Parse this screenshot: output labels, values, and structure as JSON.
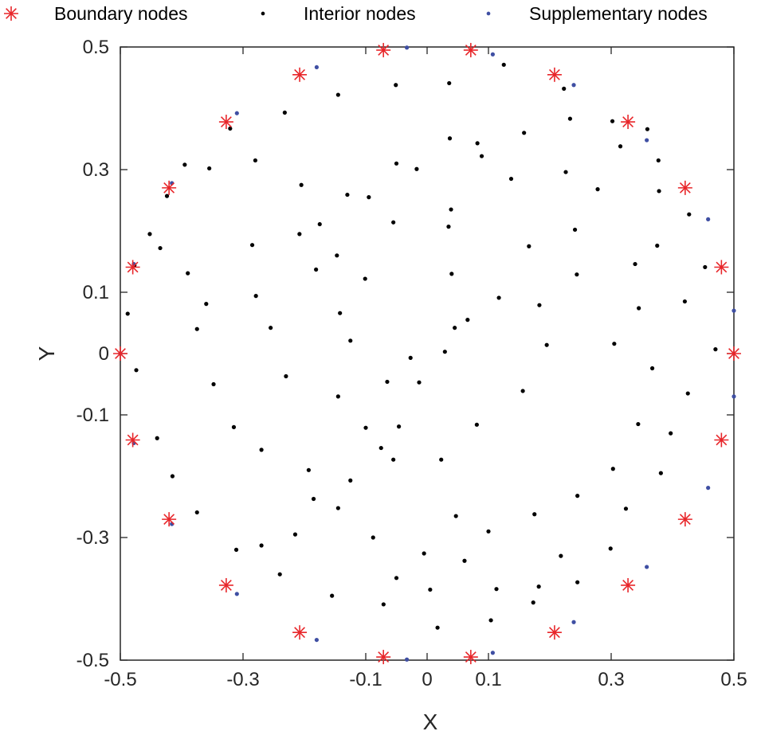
{
  "chart_data": {
    "type": "scatter",
    "xlabel": "X",
    "ylabel": "Y",
    "xlim": [
      -0.5,
      0.5
    ],
    "ylim": [
      -0.5,
      0.5
    ],
    "xticks": [
      -0.5,
      -0.3,
      -0.1,
      0,
      0.1,
      0.3,
      0.5
    ],
    "yticks": [
      -0.5,
      -0.3,
      -0.1,
      0,
      0.1,
      0.3,
      0.5
    ],
    "xtick_labels": [
      "-0.5",
      "-0.3",
      "-0.1",
      "0",
      "0.1",
      "0.3",
      "0.5"
    ],
    "ytick_labels": [
      "-0.5",
      "-0.3",
      "-0.1",
      "0",
      "0.1",
      "0.3",
      "0.5"
    ],
    "grid": false,
    "legend_position": "top",
    "series": [
      {
        "name": "Boundary nodes",
        "marker": "asterisk",
        "color": "#e8262a",
        "points": [
          [
            0.5,
            0.0
          ],
          [
            0.4797,
            0.1409
          ],
          [
            0.4206,
            0.2703
          ],
          [
            0.3274,
            0.3779
          ],
          [
            0.2077,
            0.4548
          ],
          [
            0.0712,
            0.4949
          ],
          [
            -0.0712,
            0.4949
          ],
          [
            -0.2077,
            0.4548
          ],
          [
            -0.3274,
            0.3779
          ],
          [
            -0.4206,
            0.2703
          ],
          [
            -0.4797,
            0.1409
          ],
          [
            -0.5,
            0.0
          ],
          [
            -0.4797,
            -0.1409
          ],
          [
            -0.4206,
            -0.2703
          ],
          [
            -0.3274,
            -0.3779
          ],
          [
            -0.2077,
            -0.4548
          ],
          [
            -0.0712,
            -0.4949
          ],
          [
            0.0712,
            -0.4949
          ],
          [
            0.2077,
            -0.4548
          ],
          [
            0.3274,
            -0.3779
          ],
          [
            0.4206,
            -0.2703
          ],
          [
            0.4797,
            -0.1409
          ]
        ]
      },
      {
        "name": "Interior nodes",
        "marker": "dot",
        "color": "#000000",
        "points": [
          [
            0.47,
            0.007
          ],
          [
            0.453,
            0.141
          ],
          [
            0.427,
            0.227
          ],
          [
            0.378,
            0.265
          ],
          [
            0.359,
            0.366
          ],
          [
            0.302,
            0.379
          ],
          [
            0.223,
            0.432
          ],
          [
            0.125,
            0.471
          ],
          [
            0.036,
            0.441
          ],
          [
            -0.051,
            0.438
          ],
          [
            -0.145,
            0.422
          ],
          [
            -0.232,
            0.393
          ],
          [
            -0.321,
            0.367
          ],
          [
            -0.395,
            0.308
          ],
          [
            -0.452,
            0.195
          ],
          [
            -0.477,
            0.144
          ],
          [
            -0.488,
            0.065
          ],
          [
            -0.474,
            -0.027
          ],
          [
            -0.44,
            -0.138
          ],
          [
            -0.415,
            -0.2
          ],
          [
            -0.375,
            -0.259
          ],
          [
            -0.311,
            -0.32
          ],
          [
            -0.24,
            -0.36
          ],
          [
            -0.155,
            -0.395
          ],
          [
            -0.071,
            -0.409
          ],
          [
            0.017,
            -0.447
          ],
          [
            0.104,
            -0.435
          ],
          [
            0.173,
            -0.406
          ],
          [
            0.245,
            -0.373
          ],
          [
            0.299,
            -0.318
          ],
          [
            0.324,
            -0.253
          ],
          [
            0.381,
            -0.195
          ],
          [
            0.397,
            -0.13
          ],
          [
            0.425,
            -0.065
          ],
          [
            0.42,
            0.085
          ],
          [
            0.345,
            0.074
          ],
          [
            0.305,
            0.016
          ],
          [
            0.367,
            -0.024
          ],
          [
            0.344,
            -0.115
          ],
          [
            0.303,
            -0.188
          ],
          [
            0.245,
            -0.232
          ],
          [
            0.175,
            -0.262
          ],
          [
            0.1,
            -0.29
          ],
          [
            0.047,
            -0.265
          ],
          [
            -0.005,
            -0.326
          ],
          [
            -0.088,
            -0.3
          ],
          [
            -0.145,
            -0.252
          ],
          [
            -0.193,
            -0.19
          ],
          [
            -0.27,
            -0.157
          ],
          [
            -0.315,
            -0.12
          ],
          [
            -0.348,
            -0.05
          ],
          [
            -0.375,
            0.04
          ],
          [
            -0.36,
            0.081
          ],
          [
            -0.39,
            0.131
          ],
          [
            -0.435,
            0.172
          ],
          [
            -0.424,
            0.257
          ],
          [
            -0.355,
            0.302
          ],
          [
            -0.28,
            0.315
          ],
          [
            -0.205,
            0.275
          ],
          [
            -0.095,
            0.255
          ],
          [
            -0.017,
            0.301
          ],
          [
            0.082,
            0.343
          ],
          [
            0.158,
            0.36
          ],
          [
            0.233,
            0.383
          ],
          [
            0.315,
            0.338
          ],
          [
            0.377,
            0.315
          ],
          [
            0.375,
            0.176
          ],
          [
            0.339,
            0.146
          ],
          [
            0.244,
            0.129
          ],
          [
            0.183,
            0.079
          ],
          [
            0.195,
            0.014
          ],
          [
            0.156,
            -0.061
          ],
          [
            0.081,
            -0.116
          ],
          [
            0.023,
            -0.173
          ],
          [
            -0.055,
            -0.173
          ],
          [
            -0.1,
            -0.121
          ],
          [
            -0.145,
            -0.07
          ],
          [
            -0.23,
            -0.037
          ],
          [
            -0.255,
            0.042
          ],
          [
            -0.279,
            0.094
          ],
          [
            -0.285,
            0.177
          ],
          [
            -0.208,
            0.195
          ],
          [
            -0.101,
            0.122
          ],
          [
            -0.055,
            0.214
          ],
          [
            0.039,
            0.235
          ],
          [
            0.137,
            0.285
          ],
          [
            0.226,
            0.296
          ],
          [
            0.278,
            0.268
          ],
          [
            0.241,
            0.202
          ],
          [
            0.166,
            0.175
          ],
          [
            0.117,
            0.091
          ],
          [
            0.045,
            0.042
          ],
          [
            -0.027,
            -0.007
          ],
          [
            -0.065,
            -0.046
          ],
          [
            -0.125,
            0.021
          ],
          [
            -0.142,
            0.066
          ],
          [
            -0.181,
            0.137
          ],
          [
            -0.147,
            0.16
          ],
          [
            -0.175,
            0.211
          ],
          [
            -0.13,
            0.259
          ],
          [
            -0.05,
            0.31
          ],
          [
            0.037,
            0.351
          ],
          [
            0.089,
            0.322
          ],
          [
            0.035,
            0.207
          ],
          [
            0.04,
            0.13
          ],
          [
            0.066,
            0.055
          ],
          [
            0.029,
            0.003
          ],
          [
            -0.013,
            -0.047
          ],
          [
            -0.046,
            -0.119
          ],
          [
            -0.075,
            -0.154
          ],
          [
            -0.125,
            -0.207
          ],
          [
            -0.185,
            -0.237
          ],
          [
            -0.215,
            -0.295
          ],
          [
            -0.27,
            -0.313
          ],
          [
            0.218,
            -0.33
          ],
          [
            0.182,
            -0.38
          ],
          [
            0.113,
            -0.384
          ],
          [
            0.061,
            -0.338
          ],
          [
            0.005,
            -0.385
          ],
          [
            -0.05,
            -0.366
          ]
        ]
      },
      {
        "name": "Supplementary nodes",
        "marker": "dot",
        "color": "#3f4fa3",
        "points": [
          [
            0.5,
            0.07
          ],
          [
            0.5,
            -0.07
          ],
          [
            0.458,
            0.219
          ],
          [
            0.458,
            -0.219
          ],
          [
            0.358,
            0.348
          ],
          [
            0.358,
            -0.348
          ],
          [
            0.239,
            0.438
          ],
          [
            0.239,
            -0.438
          ],
          [
            0.107,
            0.488
          ],
          [
            0.107,
            -0.488
          ],
          [
            -0.033,
            0.499
          ],
          [
            -0.033,
            -0.499
          ],
          [
            -0.18,
            0.467
          ],
          [
            -0.18,
            -0.467
          ],
          [
            -0.31,
            0.392
          ],
          [
            -0.31,
            -0.392
          ],
          [
            -0.416,
            0.278
          ],
          [
            -0.416,
            -0.278
          ],
          [
            -0.478,
            0.146
          ],
          [
            -0.478,
            -0.146
          ],
          [
            -0.5,
            0.0
          ]
        ]
      }
    ]
  }
}
